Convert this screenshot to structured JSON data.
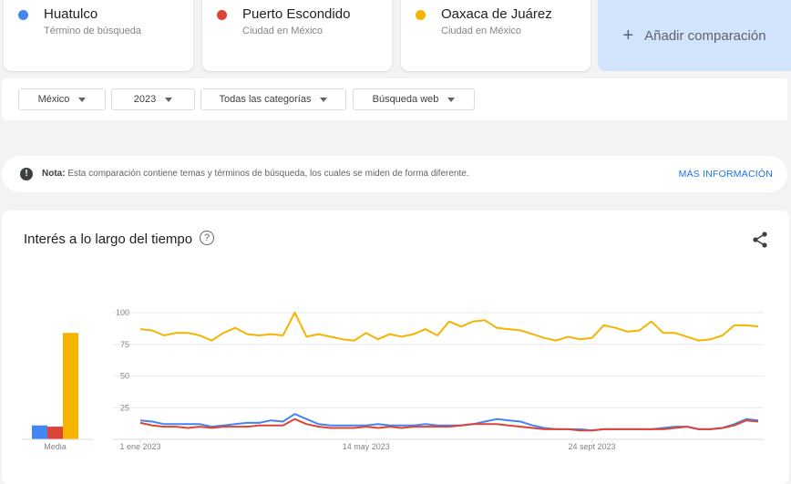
{
  "terms": [
    {
      "name": "Huatulco",
      "subtitle": "Término de búsqueda",
      "color": "#4285f4"
    },
    {
      "name": "Puerto Escondido",
      "subtitle": "Ciudad en México",
      "color": "#db4437"
    },
    {
      "name": "Oaxaca de Juárez",
      "subtitle": "Ciudad en México",
      "color": "#f4b400"
    }
  ],
  "add_comparison": {
    "label": "Añadir comparación",
    "icon": "plus-icon"
  },
  "filters": {
    "region": "México",
    "period": "2023",
    "category": "Todas las categorías",
    "search_type": "Búsqueda web"
  },
  "note": {
    "label": "Nota:",
    "text": "Esta comparación contiene temas y términos de búsqueda, los cuales se miden de forma diferente.",
    "more": "MÁS INFORMACIÓN",
    "icon": "exclamation-icon"
  },
  "chart_section": {
    "title": "Interés a lo largo del tiempo",
    "help_icon": "help-icon",
    "share_icon": "share-icon"
  },
  "chart_data": [
    {
      "type": "bar",
      "categories": [
        "Media"
      ],
      "series": [
        {
          "name": "Huatulco",
          "values": [
            11
          ],
          "color": "#4285f4"
        },
        {
          "name": "Puerto Escondido",
          "values": [
            10
          ],
          "color": "#db4437"
        },
        {
          "name": "Oaxaca de Juárez",
          "values": [
            84
          ],
          "color": "#f4b400"
        }
      ],
      "ylim": [
        0,
        100
      ]
    },
    {
      "type": "line",
      "ylim": [
        0,
        100
      ],
      "yticks": [
        "25",
        "50",
        "75",
        "100"
      ],
      "ytick_values": [
        25,
        50,
        75,
        100
      ],
      "xtick_labels": [
        "1 ene 2023",
        "14 may 2023",
        "24 sept 2023"
      ],
      "xtick_index": [
        0,
        19,
        38
      ],
      "grid": true,
      "series": [
        {
          "name": "Oaxaca de Juárez",
          "color": "#f4b400",
          "values": [
            87,
            86,
            82,
            84,
            84,
            82,
            78,
            84,
            88,
            83,
            82,
            83,
            82,
            100,
            81,
            83,
            81,
            79,
            78,
            84,
            79,
            83,
            81,
            83,
            87,
            82,
            93,
            89,
            93,
            94,
            88,
            87,
            86,
            83,
            80,
            78,
            81,
            79,
            80,
            90,
            88,
            85,
            86,
            93,
            84,
            84,
            81,
            78,
            79,
            82,
            90,
            90,
            89
          ]
        },
        {
          "name": "Huatulco",
          "color": "#4285f4",
          "values": [
            15,
            14,
            12,
            12,
            12,
            12,
            10,
            11,
            12,
            13,
            13,
            15,
            14,
            20,
            16,
            12,
            11,
            11,
            11,
            11,
            12,
            11,
            11,
            11,
            12,
            11,
            11,
            11,
            12,
            14,
            16,
            15,
            14,
            11,
            9,
            8,
            8,
            8,
            7,
            8,
            8,
            8,
            8,
            8,
            9,
            10,
            10,
            8,
            8,
            9,
            12,
            16,
            15
          ]
        },
        {
          "name": "Puerto Escondido",
          "color": "#db4437",
          "values": [
            13,
            11,
            10,
            10,
            9,
            10,
            9,
            10,
            10,
            10,
            11,
            11,
            11,
            16,
            12,
            10,
            9,
            9,
            9,
            10,
            9,
            10,
            9,
            10,
            10,
            10,
            10,
            11,
            12,
            12,
            12,
            11,
            10,
            9,
            8,
            8,
            8,
            7,
            7,
            8,
            8,
            8,
            8,
            8,
            8,
            9,
            10,
            8,
            8,
            9,
            11,
            15,
            14
          ]
        }
      ]
    }
  ]
}
